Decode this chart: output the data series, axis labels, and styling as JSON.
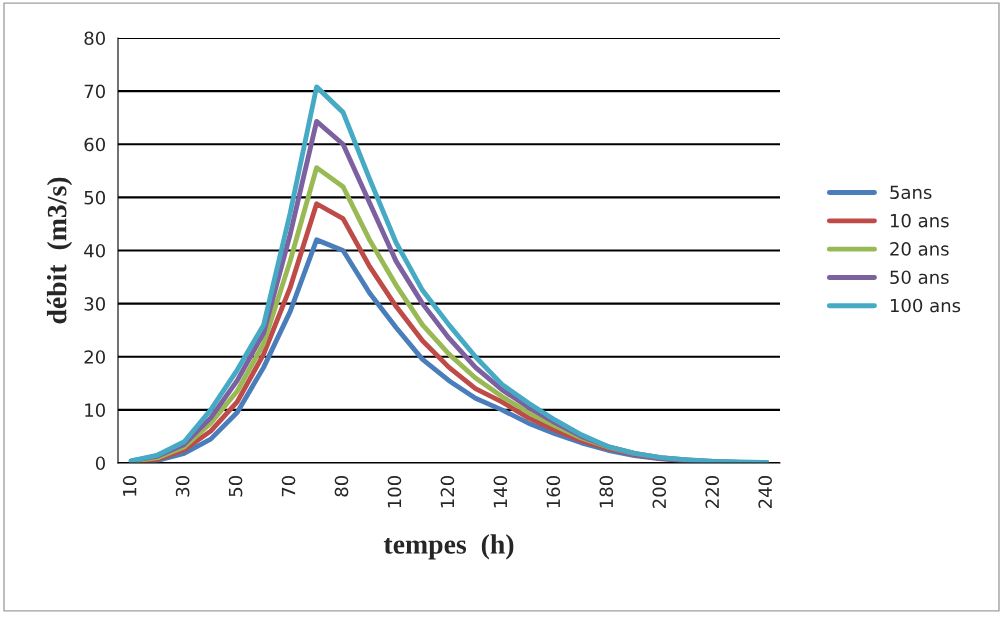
{
  "chart_data": {
    "type": "line",
    "xlabel": "tempes  (h)",
    "ylabel": "débit  (m3/s)",
    "categories": [
      "10",
      null,
      "30",
      null,
      "50",
      null,
      "70",
      null,
      "80",
      null,
      "100",
      null,
      "120",
      null,
      "140",
      null,
      "160",
      null,
      "180",
      null,
      "200",
      null,
      "220",
      null,
      "240"
    ],
    "series": [
      {
        "name": "5ans",
        "color": "#4a7ebb",
        "values": [
          0.2,
          0.5,
          1.8,
          4.5,
          9.5,
          18,
          28.5,
          42,
          40,
          32,
          25.5,
          19.5,
          15.5,
          12.2,
          10,
          7.5,
          5.5,
          3.8,
          2.4,
          1.4,
          0.8,
          0.4,
          0.2,
          0.1,
          0
        ]
      },
      {
        "name": "10 ans",
        "color": "#be4b48",
        "values": [
          0.2,
          0.7,
          2.5,
          6,
          11.5,
          20.5,
          33,
          48.8,
          46,
          37,
          29.5,
          23,
          18,
          14,
          11.5,
          8.5,
          6.2,
          4.2,
          2.7,
          1.6,
          0.9,
          0.5,
          null,
          null,
          null
        ]
      },
      {
        "name": "20 ans",
        "color": "#98b954",
        "values": [
          0.3,
          1,
          3,
          7.5,
          13.5,
          22.5,
          38,
          55.6,
          52,
          42,
          33.5,
          26,
          20.5,
          16,
          12.5,
          9.5,
          7,
          4.7,
          3,
          1.8,
          null,
          null,
          null,
          null,
          null
        ]
      },
      {
        "name": "50 ans",
        "color": "#7d60a0",
        "values": [
          0.4,
          1.3,
          3.5,
          8.5,
          15.5,
          24.5,
          43,
          64.3,
          60,
          49,
          38,
          30,
          23.5,
          18,
          13.8,
          10.5,
          7.6,
          5,
          3.1,
          1.8,
          1,
          0.6,
          0.3,
          0.1,
          0.1
        ]
      },
      {
        "name": "100 ans",
        "color": "#46aac5",
        "values": [
          0.4,
          1.5,
          4,
          10,
          17.5,
          26,
          47,
          70.8,
          66,
          53.5,
          41.5,
          32.5,
          26,
          20,
          14.8,
          11.3,
          8.1,
          5.3,
          3.1,
          1.8,
          1,
          0.6,
          0.3,
          0.2,
          0.1
        ]
      }
    ],
    "ylim": [
      0,
      80
    ],
    "yticks": [
      0,
      10,
      20,
      30,
      40,
      50,
      60,
      70,
      80
    ],
    "grid": "y",
    "legend": "right",
    "marker": "none",
    "line_style": "solid"
  }
}
